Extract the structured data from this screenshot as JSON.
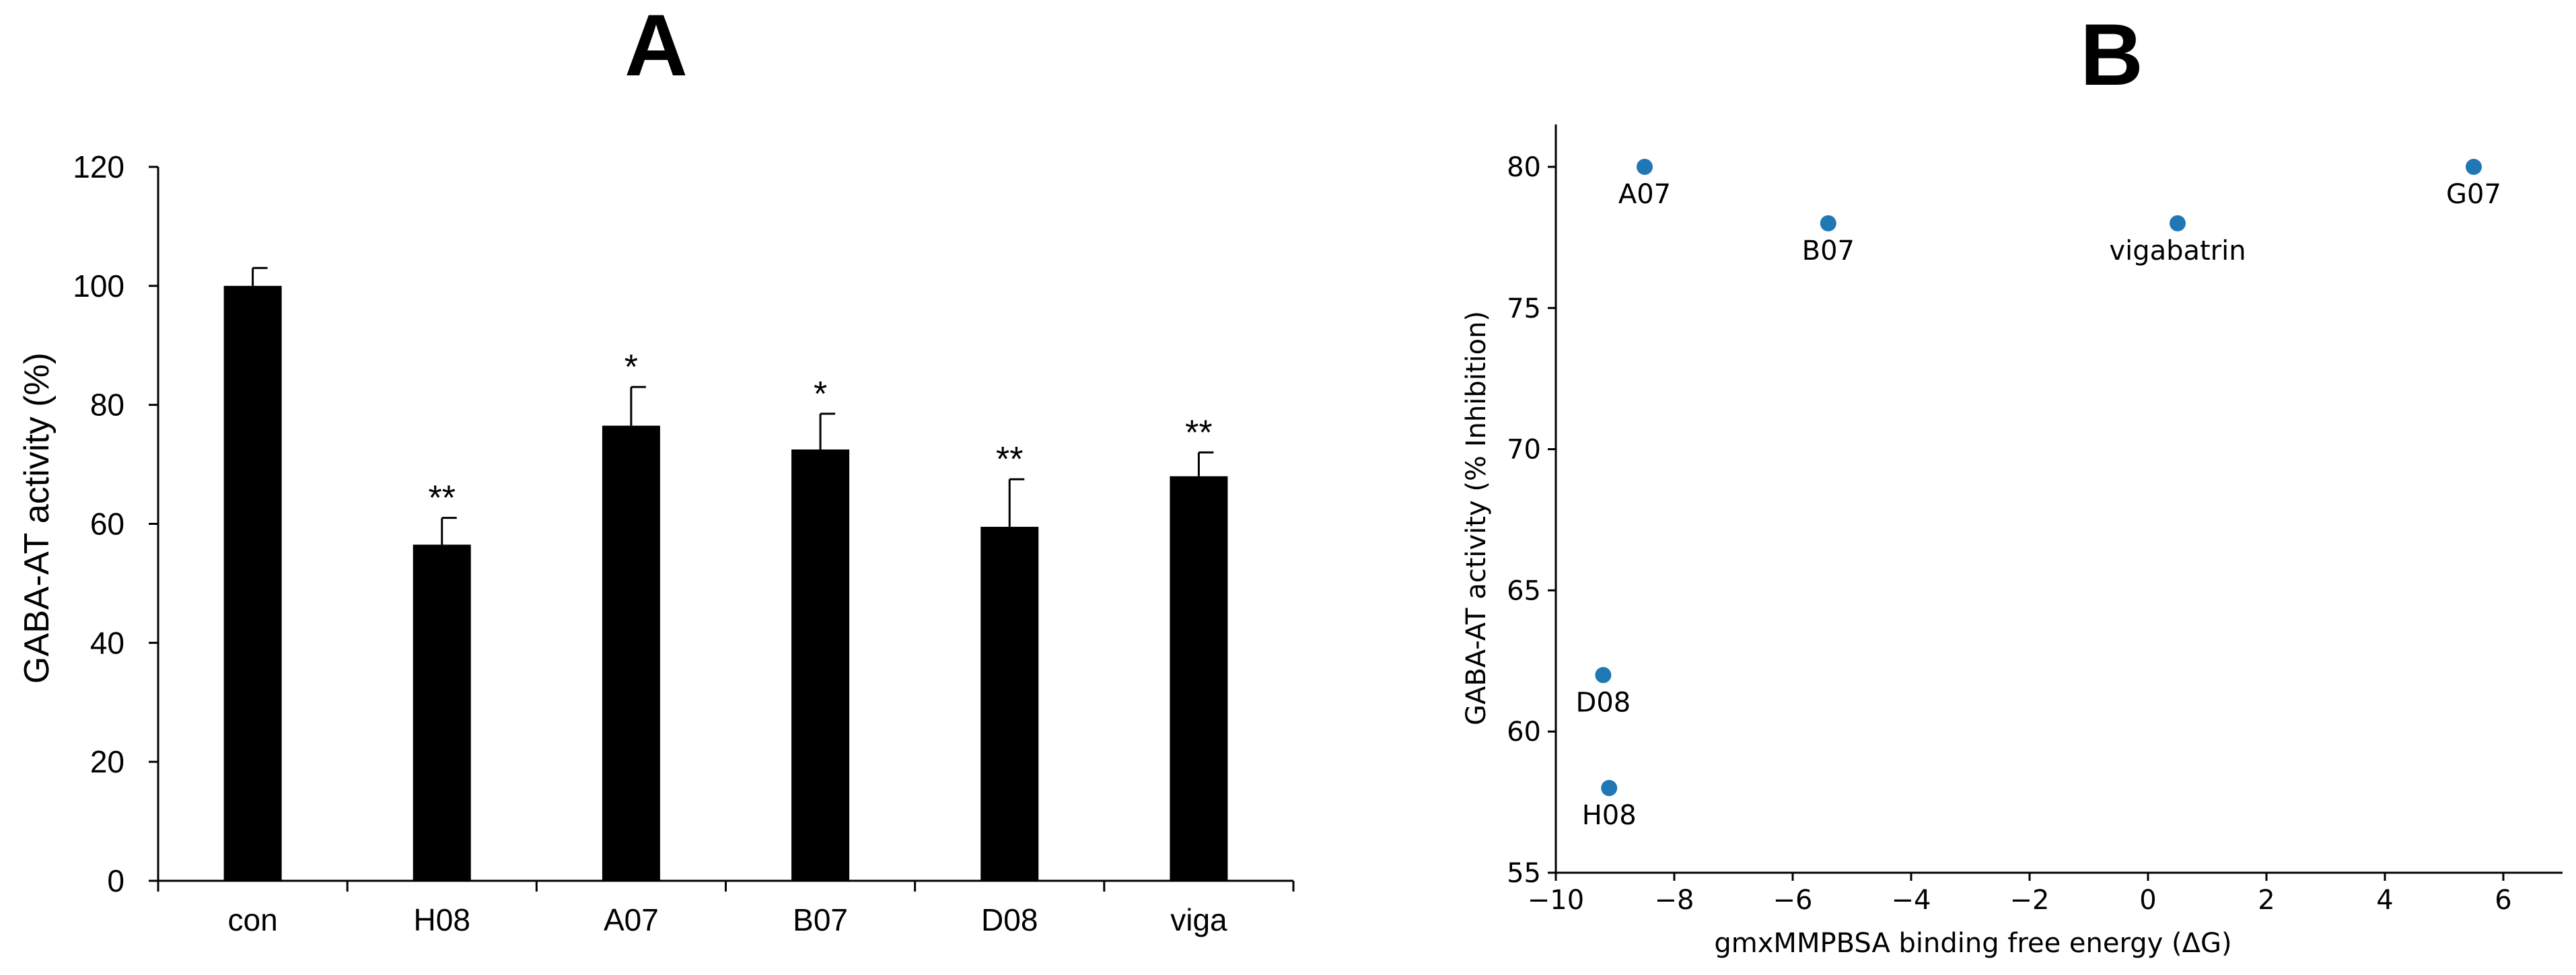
{
  "chart_data": [
    {
      "panel": "A",
      "type": "bar",
      "title": "A",
      "xlabel": "",
      "ylabel": "GABA-AT activity (%)",
      "ylim": [
        0,
        120
      ],
      "yticks": [
        0,
        20,
        40,
        60,
        80,
        100,
        120
      ],
      "grid": false,
      "categories": [
        "con",
        "H08",
        "A07",
        "B07",
        "D08",
        "viga"
      ],
      "values": [
        100,
        56.5,
        76.5,
        72.5,
        59.5,
        68
      ],
      "errors": [
        3,
        4.5,
        6.5,
        6,
        8,
        4
      ],
      "significance": [
        "",
        "**",
        "*",
        "*",
        "**",
        "**"
      ],
      "bar_color": "#000000"
    },
    {
      "panel": "B",
      "type": "scatter",
      "title": "B",
      "xlabel": "gmxMMPBSA binding free energy (ΔG)",
      "ylabel": "GABA-AT activity (% Inhibition)",
      "xlim": [
        -10,
        7
      ],
      "ylim": [
        55,
        81.5
      ],
      "xticks": [
        -10,
        -8,
        -6,
        -4,
        -2,
        0,
        2,
        4,
        6
      ],
      "xtick_labels": [
        "−10",
        "−8",
        "−6",
        "−4",
        "−2",
        "0",
        "2",
        "4",
        "6"
      ],
      "yticks": [
        55,
        60,
        65,
        70,
        75,
        80
      ],
      "grid": false,
      "point_color": "#1f77b4",
      "points": [
        {
          "label": "A07",
          "x": -8.5,
          "y": 80
        },
        {
          "label": "B07",
          "x": -5.4,
          "y": 78
        },
        {
          "label": "vigabatrin",
          "x": 0.5,
          "y": 78
        },
        {
          "label": "G07",
          "x": 5.5,
          "y": 80
        },
        {
          "label": "D08",
          "x": -9.2,
          "y": 62
        },
        {
          "label": "H08",
          "x": -9.1,
          "y": 58
        }
      ]
    }
  ]
}
